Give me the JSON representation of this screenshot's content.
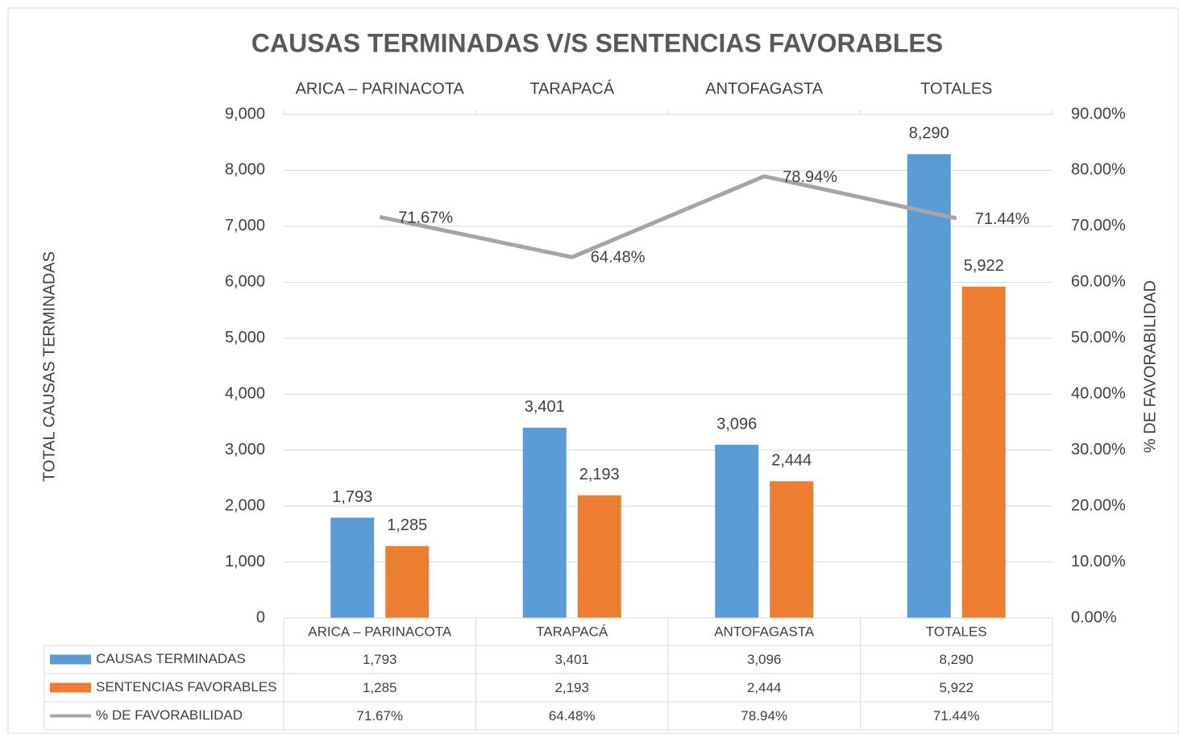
{
  "chart_data": {
    "type": "bar",
    "title": "CAUSAS TERMINADAS V/S SENTENCIAS FAVORABLES",
    "y_label": "TOTAL CAUSAS TERMINADAS",
    "y2_label": "% DE FAVORABILIDAD",
    "categories": [
      "ARICA – PARINACOTA",
      "TARAPACÁ",
      "ANTOFAGASTA",
      "TOTALES"
    ],
    "series": [
      {
        "name": "CAUSAS TERMINADAS",
        "type": "bar",
        "color": "#5b9bd5",
        "values": [
          1793,
          3401,
          3096,
          8290
        ],
        "value_labels": [
          "1,793",
          "3,401",
          "3,096",
          "8,290"
        ]
      },
      {
        "name": "SENTENCIAS FAVORABLES",
        "type": "bar",
        "color": "#ed7d31",
        "values": [
          1285,
          2193,
          2444,
          5922
        ],
        "value_labels": [
          "1,285",
          "2,193",
          "2,444",
          "5,922"
        ]
      },
      {
        "name": "% DE FAVORABILIDAD",
        "type": "line",
        "axis": "y2",
        "color": "#a5a5a5",
        "values": [
          71.67,
          64.48,
          78.94,
          71.44
        ],
        "value_labels": [
          "71.67%",
          "64.48%",
          "78.94%",
          "71.44%"
        ]
      }
    ],
    "ylim": [
      0,
      9000
    ],
    "yticks": [
      0,
      {
        "value": 1000,
        "label": "1,000"
      },
      {
        "value": 2000,
        "label": "2,000"
      },
      {
        "value": 3000,
        "label": "3,000"
      },
      {
        "value": 4000,
        "label": "4,000"
      },
      {
        "value": 5000,
        "label": "5,000"
      },
      {
        "value": 6000,
        "label": "6,000"
      },
      {
        "value": 7000,
        "label": "7,000"
      },
      {
        "value": 8000,
        "label": "8,000"
      },
      {
        "value": 9000,
        "label": "9,000"
      }
    ],
    "y2lim": [
      0,
      90
    ],
    "y2ticks": [
      {
        "value": 0,
        "label": "0.00%"
      },
      {
        "value": 10,
        "label": "10.00%"
      },
      {
        "value": 20,
        "label": "20.00%"
      },
      {
        "value": 30,
        "label": "30.00%"
      },
      {
        "value": 40,
        "label": "40.00%"
      },
      {
        "value": 50,
        "label": "50.00%"
      },
      {
        "value": 60,
        "label": "60.00%"
      },
      {
        "value": 70,
        "label": "70.00%"
      },
      {
        "value": 80,
        "label": "80.00%"
      },
      {
        "value": 90,
        "label": "90.00%"
      }
    ],
    "grid": true,
    "data_table": true
  }
}
